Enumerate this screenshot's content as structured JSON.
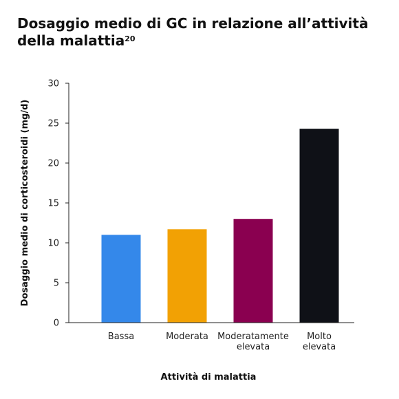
{
  "chart_data": {
    "type": "bar",
    "title": "Dosaggio medio di GC in relazione all’attività della malattia",
    "title_superscript": "20",
    "xlabel": "Attività di malattia",
    "ylabel": "Dosaggio medio di corticosteroidi (mg/d)",
    "categories": [
      [
        "Bassa"
      ],
      [
        "Moderata"
      ],
      [
        "Moderatamente",
        "elevata"
      ],
      [
        "Molto",
        "elevata"
      ]
    ],
    "values": [
      11,
      11.7,
      13,
      24.3
    ],
    "colors": [
      "#3488EA",
      "#F2A104",
      "#8A0050",
      "#0F1117"
    ],
    "ylim": [
      0,
      30
    ],
    "yticks": [
      "0",
      "5",
      "10",
      "15",
      "20",
      "25",
      "30"
    ],
    "grid": false
  }
}
